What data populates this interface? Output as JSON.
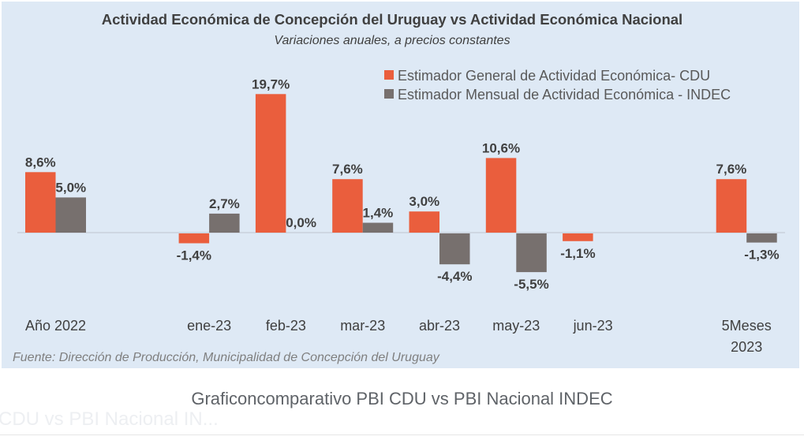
{
  "chart_data": {
    "type": "bar",
    "title": "Actividad Económica de Concepción del Uruguay vs Actividad Económica Nacional",
    "subtitle": "Variaciones anuales, a precios constantes",
    "xlabel": "",
    "ylabel": "",
    "categories": [
      "Año 2022",
      "",
      "ene-23",
      "feb-23",
      "mar-23",
      "abr-23",
      "may-23",
      "jun-23",
      "",
      "5Meses\n2023"
    ],
    "series": [
      {
        "name": "Estimador General de Actividad Económica- CDU",
        "color": "#EA5E3D",
        "values": [
          8.6,
          null,
          -1.4,
          19.7,
          7.6,
          3.0,
          10.6,
          -1.1,
          null,
          7.6
        ],
        "labels": [
          "8,6%",
          null,
          "-1,4%",
          "19,7%",
          "7,6%",
          "3,0%",
          "10,6%",
          "-1,1%",
          null,
          "7,6%"
        ]
      },
      {
        "name": "Estimador Mensual de Actividad Económica - INDEC",
        "color": "#77706E",
        "values": [
          5.0,
          null,
          2.7,
          0.0,
          1.4,
          -4.4,
          -5.5,
          null,
          null,
          -1.3
        ],
        "labels": [
          "5,0%",
          null,
          "2,7%",
          "0,0%",
          "1,4%",
          "-4,4%",
          "-5,5%",
          null,
          null,
          "-1,3%"
        ]
      }
    ],
    "ylim": [
      -7,
      21
    ],
    "grid": false,
    "legend_position": "top-right",
    "source": "Fuente: Dirección de Producción, Municipalidad de Concepción del Uruguay"
  },
  "caption": "Graficoncomparativo PBI CDU vs PBI Nacional INDEC",
  "ghost_caption": "CDU vs PBI Nacional IN..."
}
